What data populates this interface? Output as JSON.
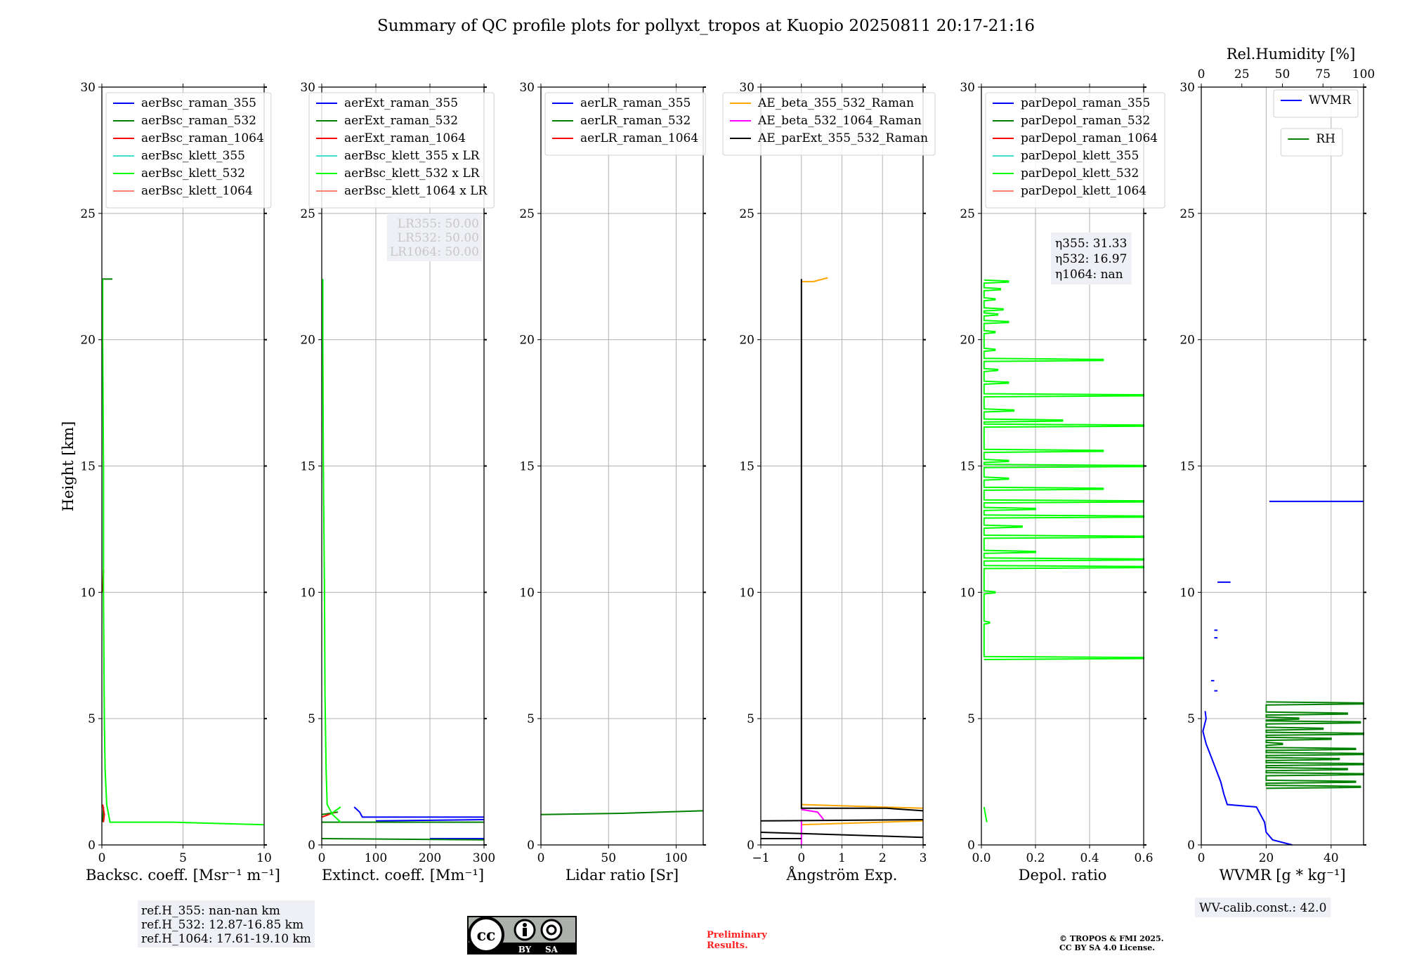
{
  "title": "Summary of QC profile plots for pollyxt_tropos at Kuopio 20250811 20:17-21:16",
  "ylabel": "Height [km]",
  "colors": {
    "blue": "#0000ff",
    "green": "#008000",
    "red": "#ff0000",
    "cyan": "#40e0d0",
    "lime": "#00ff00",
    "salmon": "#fa8072",
    "orange": "#ffa500",
    "magenta": "#ff00ff",
    "black": "#000000"
  },
  "chart_data": [
    {
      "type": "line",
      "name": "backscatter",
      "xlabel": "Backsc. coeff. [Msr⁻¹ m⁻¹]",
      "xlim": [
        0,
        10
      ],
      "xticks": [
        0,
        5,
        10
      ],
      "ylim": [
        0,
        30
      ],
      "yticks": [
        0,
        5,
        10,
        15,
        20,
        25,
        30
      ],
      "grid": true,
      "legend": "upper-left",
      "series": [
        {
          "name": "aerBsc_raman_355",
          "color": "#0000ff",
          "segments": []
        },
        {
          "name": "aerBsc_raman_532",
          "color": "#008000",
          "segments": [
            [
              [
                0.05,
                0.9
              ],
              [
                0.1,
                1.5
              ]
            ],
            [
              [
                0,
                22.4
              ],
              [
                0.65,
                22.4
              ]
            ]
          ]
        },
        {
          "name": "aerBsc_raman_1064",
          "color": "#ff0000",
          "segments": [
            [
              [
                0.1,
                0.9
              ],
              [
                0.15,
                1.2
              ],
              [
                0.05,
                1.6
              ]
            ],
            [
              [
                0.1,
                10.9
              ],
              [
                0.05,
                10
              ]
            ]
          ]
        },
        {
          "name": "aerBsc_klett_355",
          "color": "#40e0d0",
          "segments": []
        },
        {
          "name": "aerBsc_klett_532",
          "color": "#00ff00",
          "segments": [
            [
              [
                10,
                0.8
              ],
              [
                4.3,
                0.9
              ],
              [
                0.5,
                0.9
              ],
              [
                0.3,
                1.6
              ],
              [
                0.2,
                3
              ],
              [
                0.15,
                5
              ],
              [
                0.1,
                10
              ],
              [
                0.1,
                15
              ],
              [
                0.05,
                20
              ],
              [
                0.05,
                22.4
              ]
            ]
          ]
        },
        {
          "name": "aerBsc_klett_1064",
          "color": "#fa8072",
          "segments": []
        }
      ],
      "annotation": {
        "lines": [
          "ref.H_355: nan-nan km",
          "ref.H_532: 12.87-16.85 km",
          "ref.H_1064: 17.61-19.10 km"
        ]
      }
    },
    {
      "type": "line",
      "name": "extinction",
      "xlabel": "Extinct. coeff. [Mm⁻¹]",
      "xlim": [
        0,
        300
      ],
      "xticks": [
        0,
        100,
        200,
        300
      ],
      "ylim": [
        0,
        30
      ],
      "yticks": [
        0,
        5,
        10,
        15,
        20,
        25,
        30
      ],
      "grid": true,
      "legend": "upper-left",
      "series": [
        {
          "name": "aerExt_raman_355",
          "color": "#0000ff",
          "segments": [
            [
              [
                60,
                1.5
              ],
              [
                70,
                1.3
              ],
              [
                75,
                1.1
              ],
              [
                300,
                1.1
              ]
            ],
            [
              [
                100,
                0.95
              ],
              [
                300,
                1.0
              ]
            ],
            [
              [
                200,
                0.25
              ],
              [
                300,
                0.25
              ]
            ]
          ]
        },
        {
          "name": "aerExt_raman_532",
          "color": "#008000",
          "segments": [
            [
              [
                0,
                0.9
              ],
              [
                300,
                0.9
              ]
            ],
            [
              [
                0,
                0.25
              ],
              [
                300,
                0.2
              ]
            ],
            [
              [
                30,
                1.3
              ],
              [
                0,
                1.2
              ]
            ]
          ]
        },
        {
          "name": "aerExt_raman_1064",
          "color": "#ff0000",
          "segments": [
            [
              [
                0,
                1.1
              ],
              [
                25,
                1.3
              ]
            ]
          ]
        },
        {
          "name": "aerBsc_klett_355 x LR",
          "color": "#40e0d0",
          "segments": []
        },
        {
          "name": "aerBsc_klett_532 x LR",
          "color": "#00ff00",
          "segments": [
            [
              [
                35,
                0.9
              ],
              [
                20,
                1.2
              ],
              [
                10,
                1.6
              ],
              [
                8,
                3
              ],
              [
                6,
                6
              ],
              [
                5,
                10
              ],
              [
                3,
                15
              ],
              [
                2,
                20
              ],
              [
                2,
                22.4
              ]
            ],
            [
              [
                15,
                1.2
              ],
              [
                35,
                1.5
              ]
            ]
          ]
        },
        {
          "name": "aerBsc_klett_1064 x LR",
          "color": "#fa8072",
          "segments": []
        }
      ],
      "annotation": {
        "lines": [
          "LR355: 50.00",
          "LR532: 50.00",
          "LR1064: 50.00"
        ]
      }
    },
    {
      "type": "line",
      "name": "lidar-ratio",
      "xlabel": "Lidar ratio [Sr]",
      "xlim": [
        0,
        120
      ],
      "xticks": [
        0,
        50,
        100
      ],
      "ylim": [
        0,
        30
      ],
      "yticks": [
        0,
        5,
        10,
        15,
        20,
        25,
        30
      ],
      "grid": true,
      "legend": "upper-left",
      "series": [
        {
          "name": "aerLR_raman_355",
          "color": "#0000ff",
          "segments": []
        },
        {
          "name": "aerLR_raman_532",
          "color": "#008000",
          "segments": [
            [
              [
                0,
                1.2
              ],
              [
                60,
                1.25
              ],
              [
                120,
                1.35
              ]
            ]
          ]
        },
        {
          "name": "aerLR_raman_1064",
          "color": "#ff0000",
          "segments": []
        }
      ]
    },
    {
      "type": "line",
      "name": "angstrom",
      "xlabel": "Ångström Exp.",
      "xlim": [
        -1,
        3
      ],
      "xticks": [
        -1,
        0,
        1,
        2,
        3
      ],
      "ylim": [
        0,
        30
      ],
      "yticks": [
        0,
        5,
        10,
        15,
        20,
        25,
        30
      ],
      "grid": true,
      "legend": "upper-left",
      "series": [
        {
          "name": "AE_beta_355_532_Raman",
          "color": "#ffa500",
          "segments": [
            [
              [
                0,
                22.3
              ],
              [
                0.3,
                22.3
              ],
              [
                0.65,
                22.45
              ]
            ],
            [
              [
                0,
                1.6
              ],
              [
                3,
                1.45
              ]
            ],
            [
              [
                0,
                0.8
              ],
              [
                3,
                0.95
              ]
            ]
          ]
        },
        {
          "name": "AE_beta_532_1064_Raman",
          "color": "#ff00ff",
          "segments": [
            [
              [
                0,
                1.4
              ],
              [
                0.4,
                1.3
              ],
              [
                0.55,
                1.0
              ]
            ],
            [
              [
                0,
                1.0
              ],
              [
                0,
                0
              ]
            ]
          ]
        },
        {
          "name": "AE_parExt_355_532_Raman",
          "color": "#000000",
          "segments": [
            [
              [
                0,
                22.4
              ],
              [
                0,
                1.45
              ],
              [
                2.1,
                1.45
              ],
              [
                3,
                1.35
              ]
            ],
            [
              [
                -1,
                0.95
              ],
              [
                3,
                1.0
              ]
            ],
            [
              [
                -1,
                0.5
              ],
              [
                3,
                0.3
              ]
            ],
            [
              [
                -1,
                0.25
              ],
              [
                0,
                0.25
              ]
            ]
          ]
        }
      ]
    },
    {
      "type": "line",
      "name": "depolarization",
      "xlabel": "Depol. ratio",
      "xlim": [
        0,
        0.6
      ],
      "xticks": [
        0.0,
        0.2,
        0.4,
        0.6
      ],
      "ylim": [
        0,
        30
      ],
      "yticks": [
        0,
        5,
        10,
        15,
        20,
        25,
        30
      ],
      "grid": true,
      "legend": "upper-left",
      "series": [
        {
          "name": "parDepol_raman_355",
          "color": "#0000ff",
          "segments": []
        },
        {
          "name": "parDepol_raman_532",
          "color": "#008000",
          "segments": []
        },
        {
          "name": "parDepol_raman_1064",
          "color": "#ff0000",
          "segments": []
        },
        {
          "name": "parDepol_klett_355",
          "color": "#40e0d0",
          "segments": []
        },
        {
          "name": "parDepol_klett_532",
          "color": "#00ff00",
          "spikes": {
            "base": 0.01,
            "points": [
              [
                0.1,
                22.3
              ],
              [
                0.07,
                22.0
              ],
              [
                0.05,
                21.6
              ],
              [
                0.08,
                21.2
              ],
              [
                0.06,
                21.0
              ],
              [
                0.1,
                20.7
              ],
              [
                0.05,
                20.3
              ],
              [
                0.05,
                19.6
              ],
              [
                0.45,
                19.2
              ],
              [
                0.06,
                18.8
              ],
              [
                0.1,
                18.3
              ],
              [
                0.6,
                17.8
              ],
              [
                0.12,
                17.2
              ],
              [
                0.3,
                16.8
              ],
              [
                0.6,
                16.6
              ],
              [
                0.45,
                15.6
              ],
              [
                0.1,
                15.2
              ],
              [
                0.6,
                15.0
              ],
              [
                0.1,
                14.5
              ],
              [
                0.45,
                14.1
              ],
              [
                0.6,
                13.6
              ],
              [
                0.2,
                13.3
              ],
              [
                0.6,
                13.0
              ],
              [
                0.15,
                12.6
              ],
              [
                0.6,
                12.2
              ],
              [
                0.2,
                11.6
              ],
              [
                0.6,
                11.3
              ],
              [
                0.6,
                11.0
              ],
              [
                0.05,
                10.0
              ],
              [
                0.03,
                8.8
              ],
              [
                0.6,
                7.4
              ]
            ]
          },
          "segments": [
            [
              [
                0.01,
                1.5
              ],
              [
                0.02,
                0.9
              ]
            ]
          ]
        },
        {
          "name": "parDepol_klett_1064",
          "color": "#fa8072",
          "segments": []
        }
      ],
      "annotation": {
        "lines": [
          "η355: 31.33",
          "η532: 16.97",
          "η1064: nan"
        ]
      }
    },
    {
      "type": "line",
      "name": "water-vapor",
      "xlabel": "WVMR [g * kg⁻¹]",
      "xlim": [
        0,
        50
      ],
      "xticks": [
        0,
        20,
        40
      ],
      "ylim": [
        0,
        30
      ],
      "yticks": [
        0,
        5,
        10,
        15,
        20,
        25,
        30
      ],
      "grid": true,
      "legend": "upper-right",
      "top_axis": {
        "label": "Rel.Humidity [%]",
        "xlim": [
          0,
          100
        ],
        "xticks": [
          0,
          25,
          50,
          75,
          100
        ]
      },
      "series": [
        {
          "name": "WVMR",
          "color": "#0000ff",
          "segments": [
            [
              [
                28,
                0
              ],
              [
                22,
                0.2
              ],
              [
                20,
                0.5
              ],
              [
                19.5,
                0.9
              ],
              [
                17,
                1.5
              ],
              [
                8,
                1.6
              ],
              [
                7,
                2
              ],
              [
                6,
                2.5
              ],
              [
                4.5,
                3
              ],
              [
                3,
                3.5
              ],
              [
                1.5,
                4
              ],
              [
                0.5,
                4.5
              ],
              [
                1.5,
                5
              ],
              [
                1.2,
                5.3
              ]
            ],
            [
              [
                21,
                13.6
              ],
              [
                50,
                13.6
              ]
            ],
            [
              [
                5,
                10.4
              ],
              [
                9,
                10.4
              ]
            ],
            [
              [
                4,
                8.5
              ],
              [
                5,
                8.5
              ]
            ],
            [
              [
                4,
                8.2
              ],
              [
                5,
                8.2
              ]
            ],
            [
              [
                3,
                6.5
              ],
              [
                4,
                6.5
              ]
            ],
            [
              [
                4,
                6.1
              ],
              [
                5,
                6.1
              ]
            ]
          ]
        },
        {
          "name": "RH",
          "color": "#008000",
          "axis": "top",
          "spikes": {
            "base": 40,
            "points": [
              [
                100,
                5.6
              ],
              [
                90,
                5.2
              ],
              [
                60,
                5.0
              ],
              [
                98,
                4.85
              ],
              [
                75,
                4.6
              ],
              [
                100,
                4.4
              ],
              [
                80,
                4.2
              ],
              [
                50,
                4.0
              ],
              [
                95,
                3.8
              ],
              [
                100,
                3.6
              ],
              [
                85,
                3.4
              ],
              [
                100,
                3.2
              ],
              [
                90,
                3.0
              ],
              [
                100,
                2.8
              ],
              [
                95,
                2.5
              ],
              [
                98,
                2.3
              ]
            ]
          },
          "segments": []
        }
      ],
      "annotation": {
        "lines": [
          "WV-calib.const.: 42.0"
        ]
      }
    }
  ],
  "footer": {
    "preliminary": [
      "Preliminary",
      "Results."
    ],
    "copyright": [
      "© TROPOS & FMI 2025.",
      "CC BY SA 4.0 License."
    ],
    "cc_logo": {
      "cc": "cc",
      "by": "BY",
      "sa": "SA"
    }
  }
}
